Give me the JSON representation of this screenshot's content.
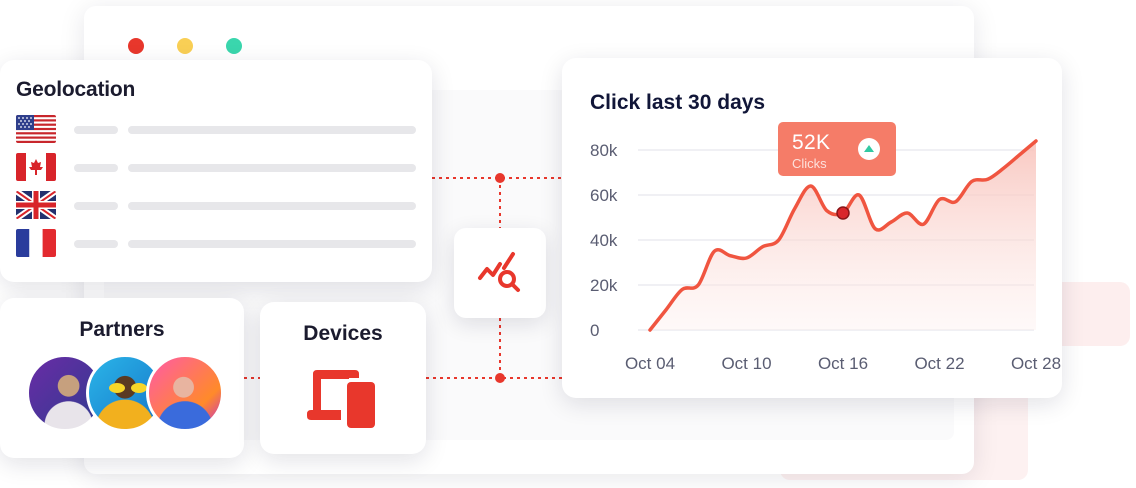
{
  "window": {
    "controls": [
      {
        "name": "close",
        "color": "#e8372c"
      },
      {
        "name": "minimize",
        "color": "#f9cf55"
      },
      {
        "name": "maximize",
        "color": "#3ad6ad"
      }
    ]
  },
  "geolocation": {
    "title": "Geolocation",
    "countries": [
      {
        "flag_icon": "usa-flag-icon"
      },
      {
        "flag_icon": "canada-flag-icon"
      },
      {
        "flag_icon": "uk-flag-icon"
      },
      {
        "flag_icon": "france-flag-icon"
      }
    ]
  },
  "partners": {
    "title": "Partners",
    "avatar_count": 3
  },
  "devices": {
    "title": "Devices",
    "icon": "devices-icon"
  },
  "center": {
    "icon": "analytics-search-icon"
  },
  "accent_color": "#e8372c",
  "chart_data": {
    "type": "area",
    "title": "Click last 30 days",
    "x_ticks": [
      "Oct 04",
      "Oct 10",
      "Oct 16",
      "Oct 22",
      "Oct 28"
    ],
    "y_ticks": [
      "80k",
      "60k",
      "40k",
      "20k",
      "0"
    ],
    "ylim": [
      0,
      80000
    ],
    "grid": true,
    "series": [
      {
        "color": "#f05540",
        "points": [
          [
            "Oct 04",
            0
          ],
          [
            "Oct 05",
            9000
          ],
          [
            "Oct 06",
            18000
          ],
          [
            "Oct 07",
            20000
          ],
          [
            "Oct 08",
            35000
          ],
          [
            "Oct 09",
            33000
          ],
          [
            "Oct 10",
            32000
          ],
          [
            "Oct 11",
            37000
          ],
          [
            "Oct 12",
            40000
          ],
          [
            "Oct 13",
            54000
          ],
          [
            "Oct 14",
            64000
          ],
          [
            "Oct 15",
            53000
          ],
          [
            "Oct 16",
            52000
          ],
          [
            "Oct 17",
            60000
          ],
          [
            "Oct 18",
            45000
          ],
          [
            "Oct 19",
            48000
          ],
          [
            "Oct 20",
            52000
          ],
          [
            "Oct 21",
            47000
          ],
          [
            "Oct 22",
            58000
          ],
          [
            "Oct 23",
            57000
          ],
          [
            "Oct 24",
            66000
          ],
          [
            "Oct 25",
            67000
          ],
          [
            "Oct 26",
            72000
          ],
          [
            "Oct 27",
            78000
          ],
          [
            "Oct 28",
            84000
          ]
        ]
      }
    ],
    "tooltip": {
      "value": "52K",
      "label": "Clicks",
      "x": "Oct 16",
      "y": 52000,
      "trend": "up"
    }
  }
}
